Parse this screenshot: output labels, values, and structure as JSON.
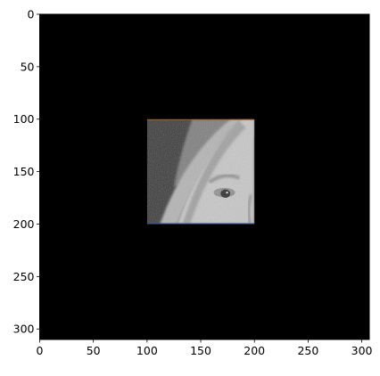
{
  "chart_data": {
    "type": "heatmap",
    "background_color": "#000000",
    "x_range": [
      0,
      307
    ],
    "y_range": [
      0,
      310
    ],
    "y_inverted": true,
    "x_ticks": [
      "0",
      "50",
      "100",
      "150",
      "200",
      "250",
      "300"
    ],
    "x_tick_values": [
      0,
      50,
      100,
      150,
      200,
      250,
      300
    ],
    "y_ticks": [
      "0",
      "50",
      "100",
      "150",
      "200",
      "250",
      "300"
    ],
    "y_tick_values": [
      0,
      50,
      100,
      150,
      200,
      250,
      300
    ],
    "inset_patch": {
      "x_range": [
        100,
        200
      ],
      "y_range": [
        100,
        200
      ],
      "content": "grayscale photo crop showing an eye and the hat brim",
      "colors": {
        "hat": "#7d7d7d",
        "hat_light": "#b4b4b4",
        "hair": "#3a3a3a",
        "skin": "#c8c8c8",
        "skin_shadow": "#8f8f8f",
        "eye": "#2a2a2a",
        "border_top": "#b5651d",
        "border_bottom": "#3b5ba5"
      }
    }
  }
}
